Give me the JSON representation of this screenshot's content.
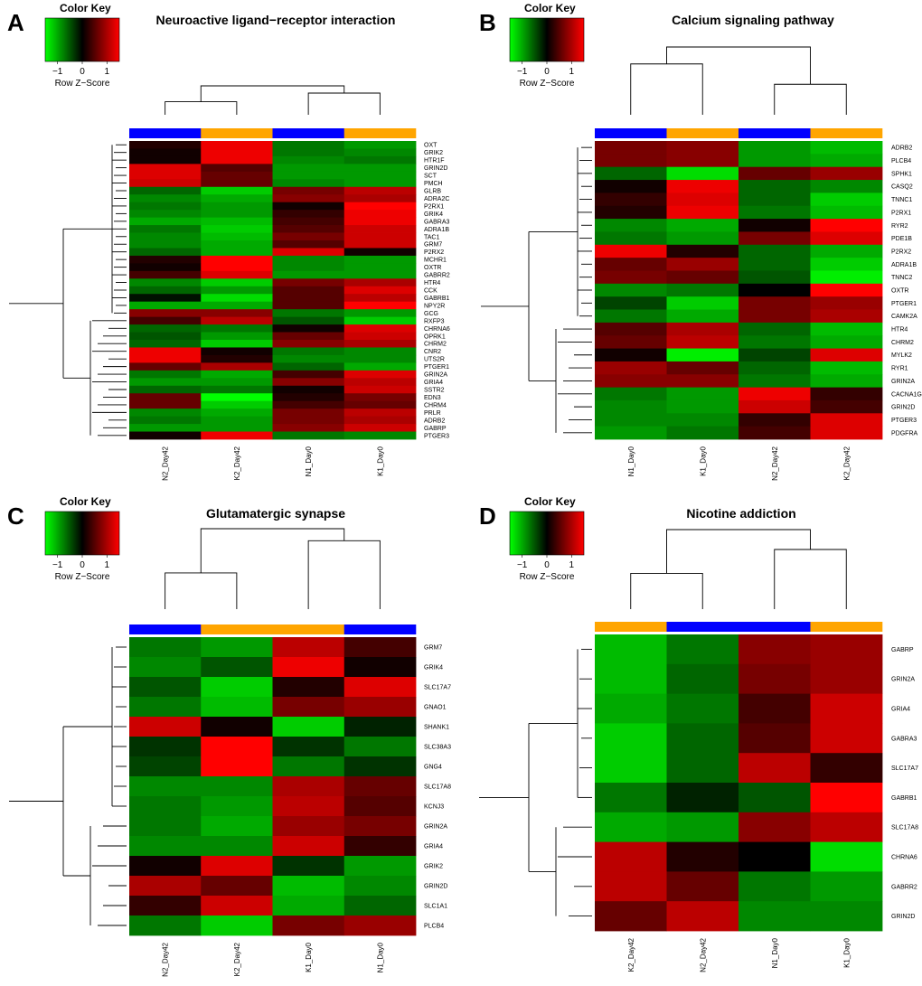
{
  "figure": {
    "colors": {
      "low": "#00ff00",
      "mid": "#000000",
      "high": "#ff0000",
      "group_blue": "#0000ff",
      "group_orange": "#ffa500"
    },
    "color_key": {
      "title": "Color Key",
      "ticks": [
        "−1",
        "0",
        "1"
      ],
      "label": "Row Z−Score"
    }
  },
  "chart_data": [
    {
      "type": "heatmap",
      "panel_label": "A",
      "title": "Neuroactive ligand−receptor interaction",
      "columns": [
        "N2_Day42",
        "K2_Day42",
        "N1_Day0",
        "K1_Day0"
      ],
      "column_groups": [
        "blue",
        "orange",
        "blue",
        "orange"
      ],
      "rows": [
        "OXT",
        "GRIK2",
        "HTR1F",
        "GRIN2D",
        "SCT",
        "PMCH",
        "GLRB",
        "ADRA2C",
        "P2RX1",
        "GRIK4",
        "GABRA3",
        "ADRA1B",
        "TAC1",
        "GRM7",
        "P2RX2",
        "MCHR1",
        "OXTR",
        "GABRR2",
        "HTR4",
        "CCK",
        "GABRB1",
        "NPY2R",
        "GCG",
        "RXFP3",
        "CHRNA6",
        "OPRK1",
        "CHRM2",
        "CNR2",
        "UTS2R",
        "PTGER1",
        "GRIN2A",
        "GRIA4",
        "SSTR2",
        "EDN3",
        "CHRM4",
        "PRLR",
        "ADRB2",
        "GABRP",
        "PTGER3"
      ],
      "values": [
        [
          0.2,
          1.4,
          -0.7,
          -0.9
        ],
        [
          0.1,
          1.4,
          -0.7,
          -0.8
        ],
        [
          0.1,
          1.4,
          -0.8,
          -0.7
        ],
        [
          1.3,
          0.5,
          -0.9,
          -0.9
        ],
        [
          1.3,
          0.6,
          -0.9,
          -0.9
        ],
        [
          1.2,
          0.6,
          -0.8,
          -0.9
        ],
        [
          -0.6,
          -1.2,
          0.7,
          1.1
        ],
        [
          -0.8,
          -1.0,
          0.8,
          1.0
        ],
        [
          -0.7,
          -0.9,
          0.1,
          1.5
        ],
        [
          -0.8,
          -0.9,
          0.3,
          1.4
        ],
        [
          -1.0,
          -1.1,
          0.4,
          1.4
        ],
        [
          -0.7,
          -1.2,
          0.5,
          1.2
        ],
        [
          -0.8,
          -1.1,
          0.7,
          1.2
        ],
        [
          -0.8,
          -1.0,
          0.5,
          1.2
        ],
        [
          -0.6,
          -1.0,
          1.3,
          0.1
        ],
        [
          0.2,
          1.5,
          -0.8,
          -0.9
        ],
        [
          0.1,
          1.5,
          -0.8,
          -0.9
        ],
        [
          0.4,
          1.3,
          -0.9,
          -0.9
        ],
        [
          -0.8,
          -1.2,
          0.7,
          1.0
        ],
        [
          -0.6,
          -0.9,
          0.5,
          1.3
        ],
        [
          -0.1,
          -1.3,
          0.5,
          1.1
        ],
        [
          -1.0,
          -1.0,
          0.5,
          1.5
        ],
        [
          0.8,
          0.8,
          -0.7,
          -0.9
        ],
        [
          0.4,
          1.1,
          -0.5,
          -1.2
        ],
        [
          -0.6,
          -0.7,
          0.1,
          1.3
        ],
        [
          -0.5,
          -0.9,
          0.6,
          1.2
        ],
        [
          -0.6,
          -1.2,
          0.8,
          1.0
        ],
        [
          1.4,
          0.1,
          -0.7,
          -0.8
        ],
        [
          1.4,
          0.2,
          -0.8,
          -0.8
        ],
        [
          0.6,
          1.0,
          -0.6,
          -1.0
        ],
        [
          -0.7,
          -1.0,
          0.4,
          1.3
        ],
        [
          -0.9,
          -0.9,
          0.8,
          1.1
        ],
        [
          -0.6,
          -0.7,
          0.1,
          1.2
        ],
        [
          0.6,
          -1.5,
          0.2,
          0.7
        ],
        [
          0.6,
          -1.2,
          0.4,
          0.6
        ],
        [
          -0.8,
          -1.0,
          0.7,
          1.1
        ],
        [
          -0.7,
          -0.9,
          0.7,
          1.0
        ],
        [
          -0.9,
          -0.9,
          0.8,
          1.2
        ],
        [
          0.1,
          1.4,
          -0.7,
          -0.8
        ]
      ]
    },
    {
      "type": "heatmap",
      "panel_label": "B",
      "title": "Calcium signaling pathway",
      "columns": [
        "N1_Day0",
        "K1_Day0",
        "N2_Day42",
        "K2_Day42"
      ],
      "column_groups": [
        "blue",
        "orange",
        "blue",
        "orange"
      ],
      "rows": [
        "ADRB2",
        "PLCB4",
        "SPHK1",
        "CASQ2",
        "TNNC1",
        "P2RX1",
        "RYR2",
        "PDE1B",
        "P2RX2",
        "ADRA1B",
        "TNNC2",
        "OXTR",
        "PTGER1",
        "CAMK2A",
        "HTR4",
        "CHRM2",
        "MYLK2",
        "RYR1",
        "GRIN2A",
        "CACNA1G",
        "GRIN2D",
        "PTGER3",
        "PDGFRA"
      ],
      "values": [
        [
          0.7,
          0.8,
          -0.9,
          -1.1
        ],
        [
          0.7,
          0.8,
          -0.9,
          -1.0
        ],
        [
          -0.6,
          -1.3,
          0.6,
          0.9
        ],
        [
          0.1,
          1.4,
          -0.6,
          -0.8
        ],
        [
          0.3,
          1.3,
          -0.6,
          -1.2
        ],
        [
          0.2,
          1.4,
          -0.7,
          -1.1
        ],
        [
          -0.8,
          -1.0,
          0.1,
          1.5
        ],
        [
          -0.7,
          -0.9,
          0.7,
          1.3
        ],
        [
          1.4,
          0.2,
          -0.6,
          -1.0
        ],
        [
          0.6,
          0.9,
          -0.6,
          -1.2
        ],
        [
          0.7,
          0.6,
          -0.5,
          -1.4
        ],
        [
          -0.8,
          -0.7,
          0.0,
          1.5
        ],
        [
          -0.4,
          -1.2,
          0.7,
          0.9
        ],
        [
          -0.7,
          -1.0,
          0.7,
          1.0
        ],
        [
          0.5,
          1.0,
          -0.6,
          -1.1
        ],
        [
          0.6,
          1.1,
          -0.7,
          -1.0
        ],
        [
          0.1,
          -1.4,
          -0.4,
          1.3
        ],
        [
          0.9,
          0.6,
          -0.6,
          -1.1
        ],
        [
          0.8,
          0.8,
          -0.7,
          -1.0
        ],
        [
          -0.7,
          -0.9,
          1.4,
          0.3
        ],
        [
          -0.8,
          -0.9,
          1.2,
          0.4
        ],
        [
          -0.8,
          -0.8,
          0.3,
          1.3
        ],
        [
          -0.9,
          -0.7,
          0.4,
          1.3
        ]
      ]
    },
    {
      "type": "heatmap",
      "panel_label": "C",
      "title": "Glutamatergic synapse",
      "columns": [
        "N2_Day42",
        "K2_Day42",
        "K1_Day0",
        "N1_Day0"
      ],
      "column_groups": [
        "blue",
        "orange",
        "orange",
        "blue"
      ],
      "rows": [
        "GRM7",
        "GRIK4",
        "SLC17A7",
        "GNAO1",
        "SHANK1",
        "SLC38A3",
        "GNG4",
        "SLC17A8",
        "KCNJ3",
        "GRIN2A",
        "GRIA4",
        "GRIK2",
        "GRIN2D",
        "SLC1A1",
        "PLCB4"
      ],
      "values": [
        [
          -0.7,
          -0.9,
          1.1,
          0.4
        ],
        [
          -0.8,
          -0.5,
          1.4,
          0.1
        ],
        [
          -0.5,
          -1.2,
          0.2,
          1.3
        ],
        [
          -0.7,
          -1.1,
          0.7,
          0.9
        ],
        [
          1.2,
          0.1,
          -1.2,
          -0.2
        ],
        [
          -0.3,
          1.5,
          -0.3,
          -0.7
        ],
        [
          -0.4,
          1.5,
          -0.7,
          -0.3
        ],
        [
          -0.8,
          -0.8,
          1.0,
          0.6
        ],
        [
          -0.7,
          -0.9,
          1.1,
          0.5
        ],
        [
          -0.7,
          -1.0,
          0.9,
          0.7
        ],
        [
          -0.8,
          -0.8,
          1.2,
          0.3
        ],
        [
          0.1,
          1.3,
          -0.3,
          -0.9
        ],
        [
          1.0,
          0.6,
          -1.1,
          -0.8
        ],
        [
          0.3,
          1.2,
          -1.0,
          -0.6
        ],
        [
          -0.7,
          -1.2,
          0.7,
          0.9
        ]
      ]
    },
    {
      "type": "heatmap",
      "panel_label": "D",
      "title": "Nicotine addiction",
      "columns": [
        "K2_Day42",
        "N2_Day42",
        "N1_Day0",
        "K1_Day0"
      ],
      "column_groups": [
        "orange",
        "blue",
        "blue",
        "orange"
      ],
      "rows": [
        "GABRP",
        "GRIN2A",
        "GRIA4",
        "GABRA3",
        "SLC17A7",
        "GABRB1",
        "SLC17A8",
        "CHRNA6",
        "GABRR2",
        "GRIN2D"
      ],
      "values": [
        [
          -1.1,
          -0.7,
          0.8,
          0.9
        ],
        [
          -1.1,
          -0.6,
          0.7,
          0.9
        ],
        [
          -1.0,
          -0.7,
          0.4,
          1.2
        ],
        [
          -1.2,
          -0.6,
          0.5,
          1.2
        ],
        [
          -1.2,
          -0.6,
          1.1,
          0.3
        ],
        [
          -0.7,
          -0.2,
          -0.5,
          1.5
        ],
        [
          -1.0,
          -0.9,
          0.8,
          1.1
        ],
        [
          1.1,
          0.2,
          0.0,
          -1.3
        ],
        [
          1.1,
          0.6,
          -0.7,
          -0.9
        ],
        [
          0.6,
          1.1,
          -0.8,
          -0.8
        ]
      ]
    }
  ]
}
